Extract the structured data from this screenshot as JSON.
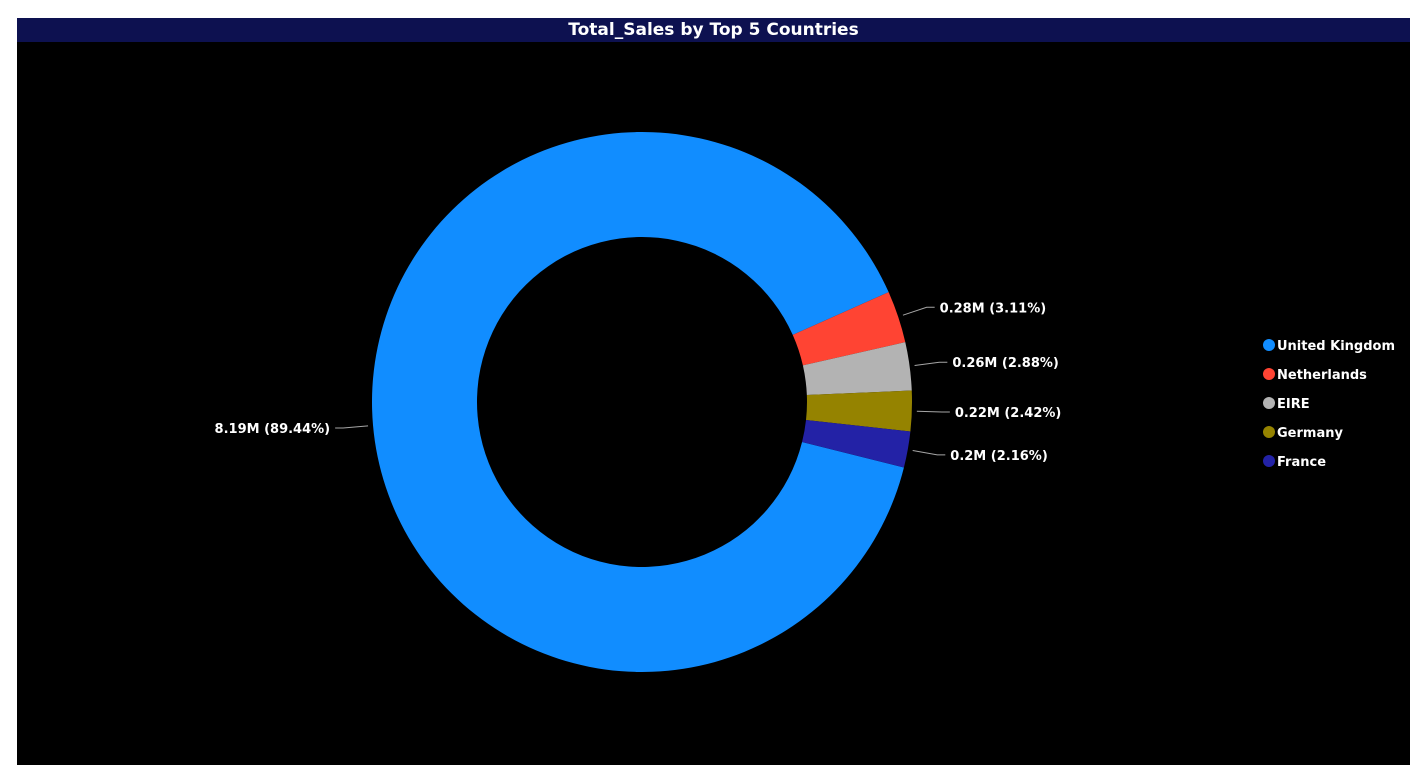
{
  "chart_data": {
    "type": "pie",
    "title": "Total_Sales by Top 5 Countries",
    "donut": true,
    "legend_position": "right",
    "categories": [
      "United Kingdom",
      "Netherlands",
      "EIRE",
      "Germany",
      "France"
    ],
    "values": [
      8.19,
      0.28,
      0.26,
      0.22,
      0.2
    ],
    "percentages": [
      89.44,
      3.11,
      2.88,
      2.42,
      2.16
    ],
    "data_labels": [
      "8.19M (89.44%)",
      "0.28M (3.11%)",
      "0.26M (2.88%)",
      "0.22M (2.42%)",
      "0.2M (2.16%)"
    ],
    "colors": [
      "#118DFF",
      "#FF4433",
      "#B3B3B3",
      "#958300",
      "#2322A6"
    ]
  }
}
